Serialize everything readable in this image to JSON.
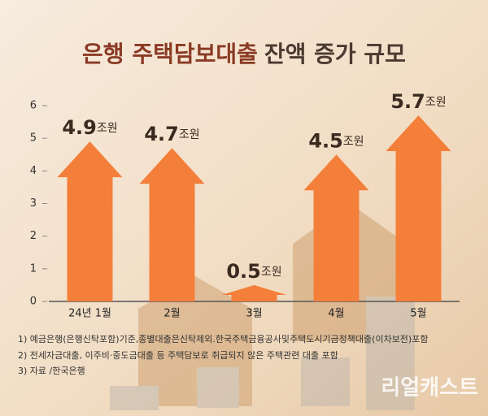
{
  "chart_data": {
    "type": "arrow-bar",
    "title": [
      "은행 주택담보대출",
      "잔액 증가 규모"
    ],
    "categories": [
      "24년 1월",
      "2월",
      "3월",
      "4월",
      "5월"
    ],
    "values": [
      4.9,
      4.7,
      0.5,
      4.5,
      5.7
    ],
    "unit": "조원",
    "color": "#f47f3a",
    "ylim": [
      0,
      6
    ],
    "yticks": [
      0,
      1,
      2,
      3,
      4,
      5,
      6
    ],
    "notes": [
      "1) 예금은행(은행신탁포함)기준,종별대출은신탁제외.한국주택금융공사및주택도시기금정책대출(이차보전)포함",
      "2) 전세자금대출, 이주비·중도금대출 등 주택담보로 취급되지 않은 주택관련 대출 포함",
      "3) 자료 /한국은행"
    ],
    "source_mark": "리얼캐스트"
  }
}
